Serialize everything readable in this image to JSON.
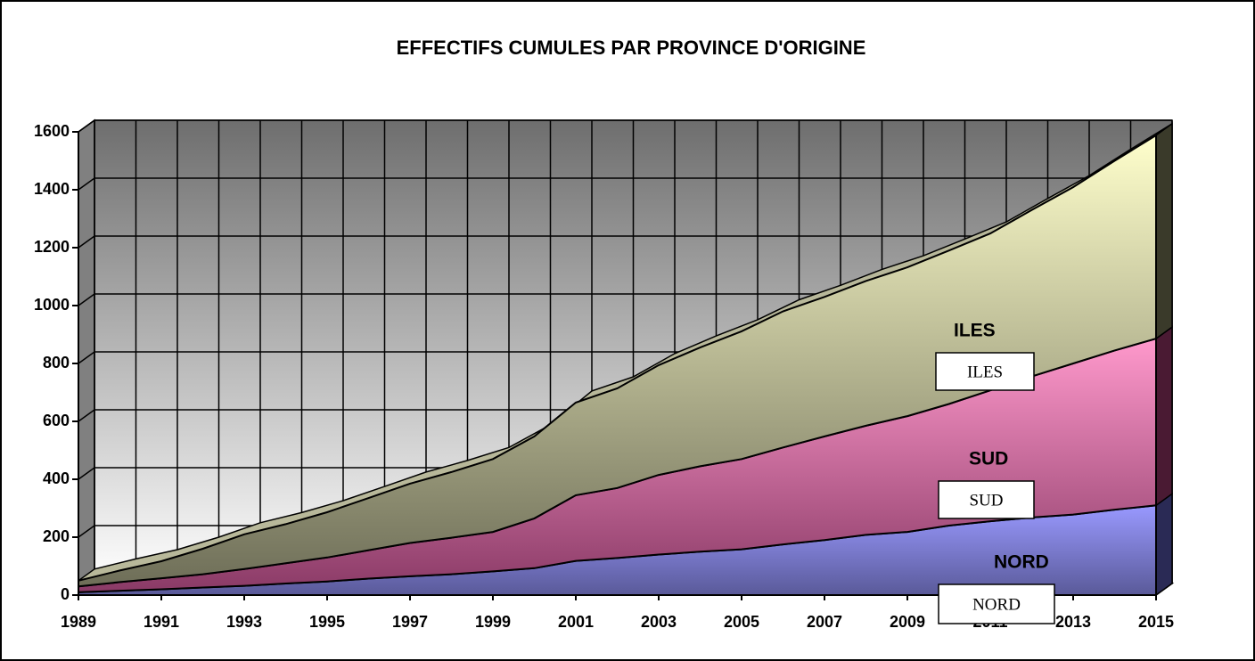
{
  "chart_data": {
    "type": "area3d",
    "stacked": true,
    "title": "EFFECTIFS CUMULES PAR PROVINCE D'ORIGINE",
    "x": [
      1989,
      1990,
      1991,
      1992,
      1993,
      1994,
      1995,
      1996,
      1997,
      1998,
      1999,
      2000,
      2001,
      2002,
      2003,
      2004,
      2005,
      2006,
      2007,
      2008,
      2009,
      2010,
      2011,
      2012,
      2013,
      2014,
      2015
    ],
    "xlim": [
      1989,
      2015
    ],
    "xticks": [
      1989,
      1991,
      1993,
      1995,
      1997,
      1999,
      2001,
      2003,
      2005,
      2007,
      2009,
      2011,
      2013,
      2015
    ],
    "ylim": [
      0,
      1600
    ],
    "yticks": [
      0,
      200,
      400,
      600,
      800,
      1000,
      1200,
      1400,
      1600
    ],
    "grid": true,
    "series": [
      {
        "name": "NORD",
        "color": "#9999ff",
        "values": [
          10,
          15,
          20,
          26,
          32,
          40,
          47,
          57,
          65,
          72,
          82,
          93,
          118,
          128,
          140,
          150,
          158,
          175,
          190,
          208,
          218,
          240,
          255,
          268,
          278,
          295,
          310
        ]
      },
      {
        "name": "SUD",
        "color": "#ff99cc",
        "values": [
          20,
          30,
          38,
          46,
          58,
          70,
          83,
          98,
          115,
          126,
          136,
          172,
          227,
          242,
          275,
          295,
          312,
          335,
          358,
          377,
          400,
          420,
          452,
          487,
          522,
          550,
          576
        ]
      },
      {
        "name": "ILES",
        "color": "#ffffcc",
        "values": [
          20,
          40,
          59,
          88,
          120,
          135,
          156,
          180,
          205,
          227,
          252,
          283,
          320,
          344,
          379,
          410,
          441,
          470,
          482,
          500,
          514,
          530,
          542,
          575,
          609,
          655,
          702
        ]
      }
    ]
  }
}
